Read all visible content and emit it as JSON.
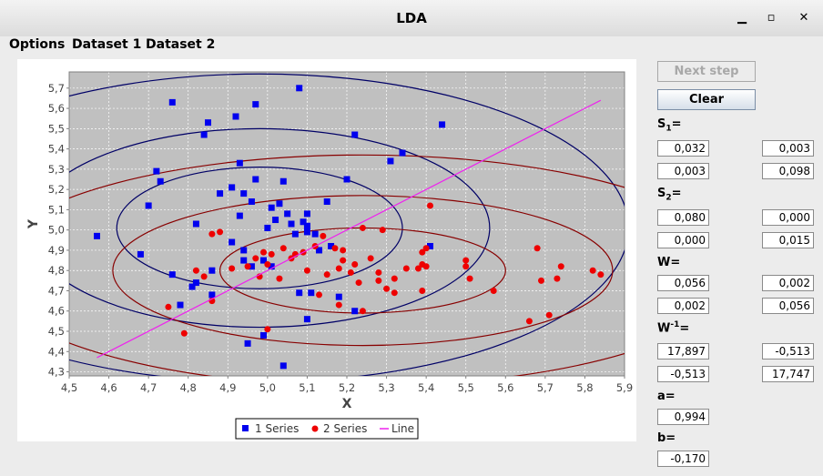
{
  "window": {
    "title": "LDA",
    "minimize_glyph": "▁",
    "maximize_glyph": "▫",
    "close_glyph": "✕"
  },
  "menu": [
    "Options",
    "Dataset 1",
    "Dataset 2"
  ],
  "buttons": {
    "next_step": "Next step",
    "clear": "Clear"
  },
  "params": {
    "s1": {
      "label_main": "S",
      "label_sub": "1",
      "label_suffix": "=",
      "values": [
        "0,032",
        "0,003",
        "0,003",
        "0,098"
      ]
    },
    "s2": {
      "label_main": "S",
      "label_sub": "2",
      "label_suffix": "=",
      "values": [
        "0,080",
        "0,000",
        "0,000",
        "0,015"
      ]
    },
    "w": {
      "label": "W=",
      "values": [
        "0,056",
        "0,002",
        "0,002",
        "0,056"
      ]
    },
    "winv": {
      "label_main": "W",
      "label_sup": "-1",
      "label_suffix": "=",
      "values": [
        "17,897",
        "-0,513",
        "-0,513",
        "17,747"
      ]
    },
    "a": {
      "label": "a=",
      "value": "0,994"
    },
    "b": {
      "label": "b=",
      "value": "-0,170"
    }
  },
  "chart_data": {
    "type": "scatter",
    "xlabel": "X",
    "ylabel": "Y",
    "xlim": [
      4.5,
      5.9
    ],
    "ylim": [
      4.28,
      5.78
    ],
    "xticks": [
      "4,5",
      "4,6",
      "4,7",
      "4,8",
      "4,9",
      "5,0",
      "5,1",
      "5,2",
      "5,3",
      "5,4",
      "5,5",
      "5,6",
      "5,7",
      "5,8",
      "5,9"
    ],
    "yticks": [
      "4,3",
      "4,4",
      "4,5",
      "4,6",
      "4,7",
      "4,8",
      "4,9",
      "5,0",
      "5,1",
      "5,2",
      "5,3",
      "5,4",
      "5,5",
      "5,6",
      "5,7"
    ],
    "grid": true,
    "legend_position": "bottom",
    "colors": {
      "series1": "#0000ee",
      "series2": "#ee0000",
      "line": "#ee22ee",
      "ellipse1": "#000066",
      "ellipse2": "#880000",
      "plot_bg": "#c0c0c0"
    },
    "series": [
      {
        "name": "1 Series",
        "marker": "square",
        "points": [
          [
            4.57,
            4.97
          ],
          [
            4.68,
            4.88
          ],
          [
            4.7,
            5.12
          ],
          [
            4.72,
            5.29
          ],
          [
            4.73,
            5.24
          ],
          [
            4.76,
            4.78
          ],
          [
            4.76,
            5.63
          ],
          [
            4.78,
            4.63
          ],
          [
            4.81,
            4.72
          ],
          [
            4.82,
            4.74
          ],
          [
            4.82,
            5.03
          ],
          [
            4.84,
            5.47
          ],
          [
            4.85,
            5.53
          ],
          [
            4.86,
            4.8
          ],
          [
            4.86,
            4.68
          ],
          [
            4.88,
            5.18
          ],
          [
            4.91,
            5.21
          ],
          [
            4.92,
            5.56
          ],
          [
            4.91,
            4.94
          ],
          [
            4.93,
            5.33
          ],
          [
            4.93,
            5.07
          ],
          [
            4.94,
            5.18
          ],
          [
            4.94,
            4.85
          ],
          [
            4.94,
            4.9
          ],
          [
            4.95,
            4.44
          ],
          [
            4.96,
            5.14
          ],
          [
            4.96,
            4.82
          ],
          [
            4.97,
            5.25
          ],
          [
            4.97,
            5.62
          ],
          [
            4.99,
            4.85
          ],
          [
            4.99,
            4.48
          ],
          [
            5.0,
            5.01
          ],
          [
            5.01,
            5.11
          ],
          [
            5.01,
            4.82
          ],
          [
            5.02,
            5.05
          ],
          [
            5.03,
            5.13
          ],
          [
            5.04,
            5.24
          ],
          [
            5.04,
            4.33
          ],
          [
            5.05,
            5.08
          ],
          [
            5.06,
            5.03
          ],
          [
            5.07,
            4.98
          ],
          [
            5.08,
            4.69
          ],
          [
            5.08,
            5.7
          ],
          [
            5.09,
            5.04
          ],
          [
            5.1,
            4.99
          ],
          [
            5.1,
            5.08
          ],
          [
            5.1,
            5.02
          ],
          [
            5.1,
            4.56
          ],
          [
            5.11,
            4.69
          ],
          [
            5.12,
            4.98
          ],
          [
            5.13,
            4.9
          ],
          [
            5.15,
            5.14
          ],
          [
            5.16,
            4.92
          ],
          [
            5.18,
            4.67
          ],
          [
            5.2,
            5.25
          ],
          [
            5.22,
            5.47
          ],
          [
            5.22,
            4.6
          ],
          [
            5.31,
            5.34
          ],
          [
            5.34,
            5.38
          ],
          [
            5.41,
            4.92
          ],
          [
            5.44,
            5.52
          ]
        ]
      },
      {
        "name": "2 Series",
        "marker": "circle",
        "points": [
          [
            4.75,
            4.62
          ],
          [
            4.79,
            4.49
          ],
          [
            4.82,
            4.8
          ],
          [
            4.84,
            4.77
          ],
          [
            4.86,
            4.65
          ],
          [
            4.86,
            4.98
          ],
          [
            4.88,
            4.99
          ],
          [
            4.91,
            4.81
          ],
          [
            4.95,
            4.82
          ],
          [
            4.97,
            4.86
          ],
          [
            4.98,
            4.77
          ],
          [
            4.99,
            4.89
          ],
          [
            5.0,
            4.83
          ],
          [
            5.0,
            4.51
          ],
          [
            5.01,
            4.88
          ],
          [
            5.03,
            4.76
          ],
          [
            5.04,
            4.91
          ],
          [
            5.06,
            4.86
          ],
          [
            5.07,
            4.88
          ],
          [
            5.09,
            4.89
          ],
          [
            5.1,
            4.8
          ],
          [
            5.12,
            4.92
          ],
          [
            5.13,
            4.68
          ],
          [
            5.14,
            4.97
          ],
          [
            5.15,
            4.78
          ],
          [
            5.17,
            4.91
          ],
          [
            5.18,
            4.81
          ],
          [
            5.18,
            4.63
          ],
          [
            5.19,
            4.85
          ],
          [
            5.19,
            4.9
          ],
          [
            5.21,
            4.79
          ],
          [
            5.22,
            4.83
          ],
          [
            5.23,
            4.74
          ],
          [
            5.24,
            5.01
          ],
          [
            5.24,
            4.6
          ],
          [
            5.26,
            4.86
          ],
          [
            5.28,
            4.79
          ],
          [
            5.28,
            4.75
          ],
          [
            5.29,
            5.0
          ],
          [
            5.3,
            4.71
          ],
          [
            5.32,
            4.69
          ],
          [
            5.32,
            4.76
          ],
          [
            5.35,
            4.81
          ],
          [
            5.38,
            4.81
          ],
          [
            5.39,
            4.89
          ],
          [
            5.39,
            4.83
          ],
          [
            5.39,
            4.7
          ],
          [
            5.4,
            4.82
          ],
          [
            5.4,
            4.91
          ],
          [
            5.41,
            5.12
          ],
          [
            5.5,
            4.82
          ],
          [
            5.5,
            4.85
          ],
          [
            5.51,
            4.76
          ],
          [
            5.57,
            4.7
          ],
          [
            5.66,
            4.55
          ],
          [
            5.68,
            4.91
          ],
          [
            5.69,
            4.75
          ],
          [
            5.71,
            4.58
          ],
          [
            5.73,
            4.76
          ],
          [
            5.74,
            4.82
          ],
          [
            5.82,
            4.8
          ],
          [
            5.84,
            4.78
          ]
        ]
      },
      {
        "name": "Line",
        "marker": "line",
        "points": [
          [
            4.57,
            4.37
          ],
          [
            5.84,
            5.64
          ]
        ]
      }
    ],
    "ellipses": [
      {
        "group": 1,
        "cx": 4.98,
        "cy": 5.01,
        "rx": 0.36,
        "ry": 0.3
      },
      {
        "group": 1,
        "cx": 4.98,
        "cy": 5.01,
        "rx": 0.58,
        "ry": 0.49
      },
      {
        "group": 1,
        "cx": 4.98,
        "cy": 5.01,
        "rx": 0.93,
        "ry": 0.76
      },
      {
        "group": 2,
        "cx": 5.24,
        "cy": 4.8,
        "rx": 0.36,
        "ry": 0.21
      },
      {
        "group": 2,
        "cx": 5.24,
        "cy": 4.8,
        "rx": 0.63,
        "ry": 0.37
      },
      {
        "group": 2,
        "cx": 5.24,
        "cy": 4.8,
        "rx": 0.95,
        "ry": 0.57
      }
    ]
  }
}
